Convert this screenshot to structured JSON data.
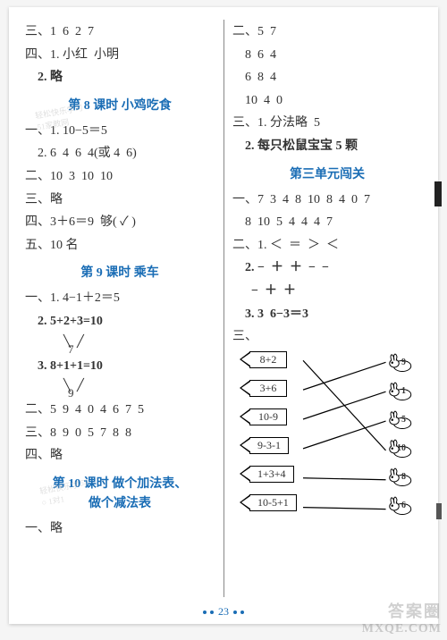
{
  "left": {
    "l1": "三、1  6  2  7",
    "l2": "四、1. 小红  小明",
    "l3": "    2. 略",
    "h1": "第 8 课时  小鸡吃食",
    "l4": "一、1. 10−5＝5",
    "l5": "    2. 6  4  6  4(或 4  6)",
    "l6": "二、10  3  10  10",
    "l7": "三、略",
    "l8": "四、3＋6＝9  够( ✓ )",
    "l9": "五、10 名",
    "h2": "第 9 课时  乘车",
    "l10": "一、1. 4−1＋2＝5",
    "l11a": "    2. 5+2+3=10",
    "b1": "7",
    "l12a": "    3. 8+1+1=10",
    "b2": "9",
    "l13": "二、5  9  4  0  4  6  7  5",
    "l14": "三、8  9  0  5  7  8  8",
    "l15": "四、略",
    "h3": "第 10 课时  做个加法表、",
    "h3b": "做个减法表",
    "l16": "一、略"
  },
  "right": {
    "r1": "二、5  7",
    "r2": "    8  6  4",
    "r3": "    6  8  4",
    "r4": "    10  4  0",
    "r5": "三、1. 分法略  5",
    "r6": "    2. 每只松鼠宝宝 5 颗",
    "h4": "第三单元闯关",
    "r7": "一、7  3  4  8  10  8  4  0  7",
    "r8": "    8  10  5  4  4  4  7",
    "r9": "二、1. ＜  ＝  ＞  ＜",
    "r10": "    2. −  ＋  ＋  −  −",
    "r11": "      −  ＋  ＋",
    "r12": "    3. 3  6−3＝3",
    "r13": "三、"
  },
  "match": {
    "left": [
      "8+2",
      "3+6",
      "10-9",
      "9-3-1",
      "1+3+4",
      "10-5+1"
    ],
    "right": [
      "9",
      "1",
      "5",
      "10",
      "8",
      "6"
    ],
    "edges": [
      [
        0,
        3
      ],
      [
        1,
        0
      ],
      [
        2,
        1
      ],
      [
        3,
        2
      ],
      [
        4,
        4
      ],
      [
        5,
        5
      ]
    ],
    "left_y": [
      0,
      32,
      64,
      96,
      128,
      160
    ],
    "right_y": [
      0,
      32,
      64,
      96,
      128,
      160
    ]
  },
  "pageNum": "23",
  "wm_bottom1": "答案圈",
  "wm_bottom2": "MXQE.COM"
}
